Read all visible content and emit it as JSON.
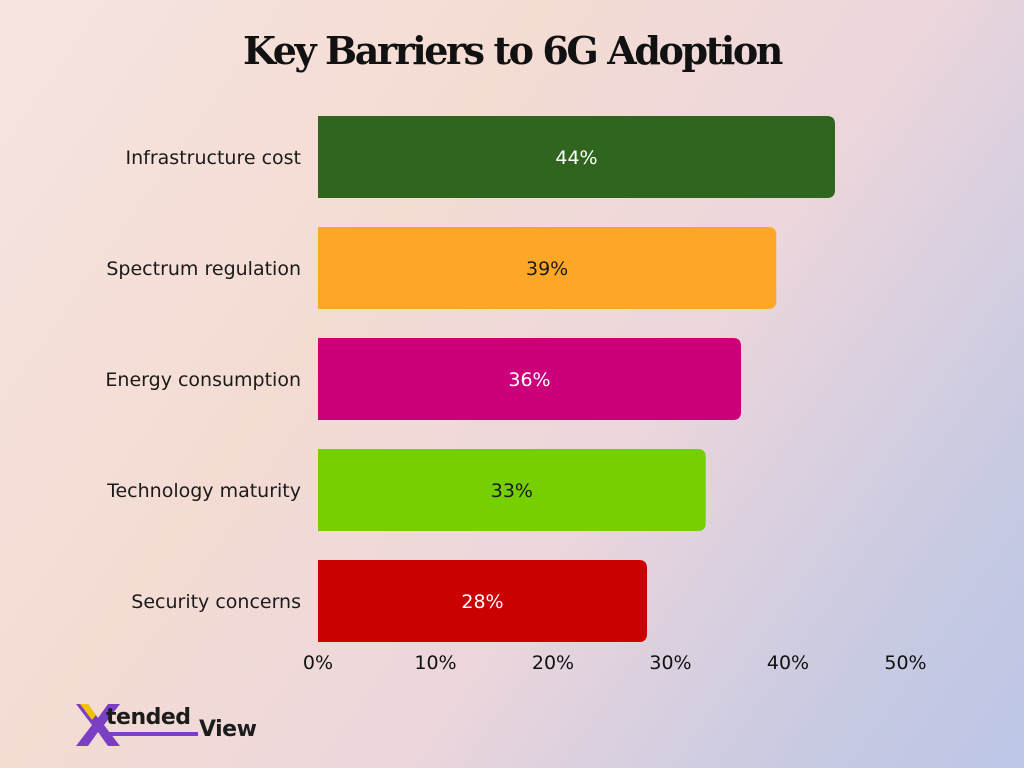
{
  "title": "Key Barriers to 6G Adoption",
  "brand": {
    "logo_text": "XtendedView",
    "mark_text": "X",
    "word_a": "tended",
    "word_b": "View",
    "mark_color": "#7a3fc4",
    "accent_yellow": "#f2c200"
  },
  "chart_data": {
    "type": "bar",
    "orientation": "horizontal",
    "title": "Key Barriers to 6G Adoption",
    "categories": [
      "Infrastructure cost",
      "Spectrum regulation",
      "Energy consumption",
      "Technology maturity",
      "Security concerns"
    ],
    "values": [
      44,
      39,
      36,
      33,
      28
    ],
    "value_labels": [
      "44%",
      "39%",
      "36%",
      "33%",
      "28%"
    ],
    "colors": [
      "#2f651e",
      "#fea626",
      "#cc0079",
      "#76cf00",
      "#cb0000"
    ],
    "label_colors": [
      "#ffffff",
      "#1a1a1a",
      "#ffffff",
      "#1a1a1a",
      "#ffffff"
    ],
    "xlim": [
      0,
      50
    ],
    "xticks": [
      0,
      10,
      20,
      30,
      40,
      50
    ],
    "xtick_labels": [
      "0%",
      "10%",
      "20%",
      "30%",
      "40%",
      "50%"
    ],
    "grid": false,
    "legend": "none"
  }
}
